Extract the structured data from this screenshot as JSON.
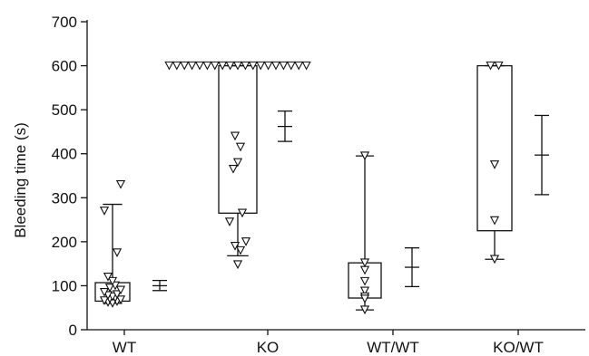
{
  "chart_data": {
    "type": "box",
    "ylabel": "Bleeding time (s)",
    "ylim": [
      0,
      700
    ],
    "yticks": [
      0,
      100,
      200,
      300,
      400,
      500,
      600,
      700
    ],
    "categories": [
      "WT",
      "KO",
      "WT/WT",
      "KO/WT"
    ],
    "groups": [
      {
        "category": "WT",
        "box": {
          "q1": 65,
          "q3": 107
        },
        "whisker": {
          "low": 60,
          "high": 285
        },
        "points": [
          60,
          62,
          64,
          66,
          68,
          70,
          72,
          75,
          78,
          80,
          85,
          90,
          95,
          100,
          110,
          120,
          175,
          270,
          330
        ],
        "mean_sem": {
          "mean": 100,
          "low": 89,
          "high": 112
        }
      },
      {
        "category": "KO",
        "box": {
          "q1": 265,
          "q3": 600
        },
        "whisker": {
          "low": 168,
          "high": 600
        },
        "points": [
          600,
          600,
          600,
          600,
          600,
          600,
          600,
          600,
          600,
          600,
          600,
          600,
          600,
          600,
          600,
          600,
          600,
          600,
          600,
          440,
          415,
          380,
          365,
          265,
          245,
          200,
          190,
          180,
          148
        ],
        "mean_sem": {
          "mean": 462,
          "low": 428,
          "high": 497
        }
      },
      {
        "category": "WT/WT",
        "box": {
          "q1": 72,
          "q3": 152
        },
        "whisker": {
          "low": 45,
          "high": 395
        },
        "points": [
          395,
          152,
          135,
          110,
          88,
          75,
          70,
          45
        ],
        "mean_sem": {
          "mean": 142,
          "low": 98,
          "high": 186
        }
      },
      {
        "category": "KO/WT",
        "box": {
          "q1": 225,
          "q3": 600
        },
        "whisker": {
          "low": 160,
          "high": 600
        },
        "points": [
          600,
          600,
          375,
          248,
          160
        ],
        "mean_sem": {
          "mean": 397,
          "low": 307,
          "high": 487
        }
      }
    ]
  }
}
